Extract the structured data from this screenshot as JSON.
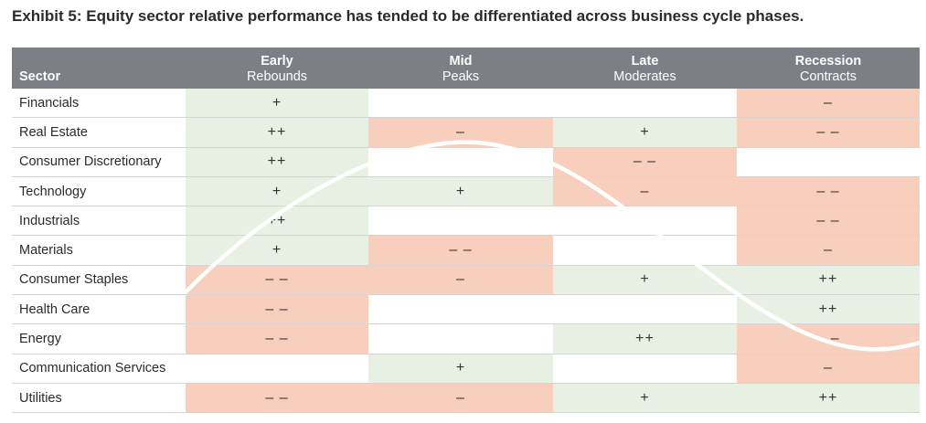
{
  "title": "Exhibit 5: Equity sector relative performance has tended to be differentiated across business cycle phases.",
  "colors": {
    "header_bg": "#7c7f84",
    "positive": "#e7f0e3",
    "negative": "#f8cfbd",
    "neutral": "#ffffff",
    "curve": "#ffffff"
  },
  "chart_data": {
    "type": "table",
    "columns": [
      {
        "label": "Sector",
        "sub": ""
      },
      {
        "label": "Early",
        "sub": "Rebounds"
      },
      {
        "label": "Mid",
        "sub": "Peaks"
      },
      {
        "label": "Late",
        "sub": "Moderates"
      },
      {
        "label": "Recession",
        "sub": "Contracts"
      }
    ],
    "rows": [
      {
        "sector": "Financials",
        "values": [
          "+",
          "",
          "",
          "–"
        ]
      },
      {
        "sector": "Real Estate",
        "values": [
          "++",
          "–",
          "+",
          "– –"
        ]
      },
      {
        "sector": "Consumer Discretionary",
        "values": [
          "++",
          "",
          "– –",
          ""
        ]
      },
      {
        "sector": "Technology",
        "values": [
          "+",
          "+",
          "–",
          "– –"
        ]
      },
      {
        "sector": "Industrials",
        "values": [
          "++",
          "",
          "",
          "– –"
        ]
      },
      {
        "sector": "Materials",
        "values": [
          "+",
          "– –",
          "",
          "–"
        ]
      },
      {
        "sector": "Consumer Staples",
        "values": [
          "– –",
          "–",
          "+",
          "++"
        ]
      },
      {
        "sector": "Health Care",
        "values": [
          "– –",
          "",
          "",
          "++"
        ]
      },
      {
        "sector": "Energy",
        "values": [
          "– –",
          "",
          "++",
          "– –"
        ]
      },
      {
        "sector": "Communication Services",
        "values": [
          "",
          "+",
          "",
          "–"
        ]
      },
      {
        "sector": "Utilities",
        "values": [
          "– –",
          "–",
          "+",
          "++"
        ]
      }
    ]
  }
}
